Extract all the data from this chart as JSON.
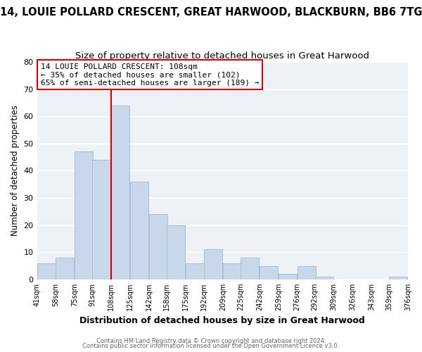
{
  "title": "14, LOUIE POLLARD CRESCENT, GREAT HARWOOD, BLACKBURN, BB6 7TG",
  "subtitle": "Size of property relative to detached houses in Great Harwood",
  "xlabel": "Distribution of detached houses by size in Great Harwood",
  "ylabel": "Number of detached properties",
  "bar_color": "#c8d8ea",
  "bar_edge_color": "#a8c0d4",
  "vline_color": "#cc0000",
  "vline_x": 108,
  "annotation_title": "14 LOUIE POLLARD CRESCENT: 108sqm",
  "annotation_line1": "← 35% of detached houses are smaller (102)",
  "annotation_line2": "65% of semi-detached houses are larger (189) →",
  "bins": [
    41,
    58,
    75,
    91,
    108,
    125,
    142,
    158,
    175,
    192,
    209,
    225,
    242,
    259,
    276,
    292,
    309,
    326,
    343,
    359,
    376
  ],
  "counts": [
    6,
    8,
    47,
    44,
    64,
    36,
    24,
    20,
    6,
    11,
    6,
    8,
    5,
    2,
    5,
    1,
    0,
    0,
    0,
    1
  ],
  "tick_labels": [
    "41sqm",
    "58sqm",
    "75sqm",
    "91sqm",
    "108sqm",
    "125sqm",
    "142sqm",
    "158sqm",
    "175sqm",
    "192sqm",
    "209sqm",
    "225sqm",
    "242sqm",
    "259sqm",
    "276sqm",
    "292sqm",
    "309sqm",
    "326sqm",
    "343sqm",
    "359sqm",
    "376sqm"
  ],
  "ylim": [
    0,
    80
  ],
  "yticks": [
    0,
    10,
    20,
    30,
    40,
    50,
    60,
    70,
    80
  ],
  "footer1": "Contains HM Land Registry data © Crown copyright and database right 2024.",
  "footer2": "Contains public sector information licensed under the Open Government Licence v3.0.",
  "background_color": "#ffffff",
  "plot_bg_color": "#eef2f7",
  "grid_color": "#ffffff",
  "title_fontsize": 10.5,
  "subtitle_fontsize": 9.5
}
